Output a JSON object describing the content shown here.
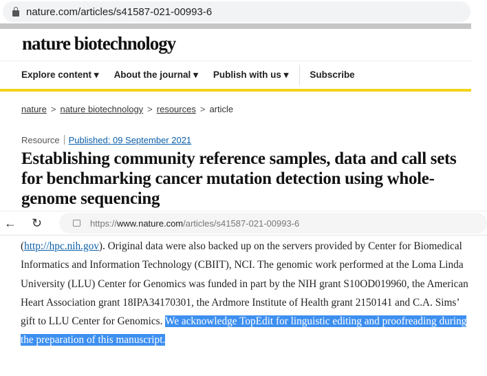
{
  "browser_top": {
    "url": "nature.com/articles/s41587-021-00993-6"
  },
  "site": {
    "logo": "nature biotechnology",
    "nav": [
      {
        "label": "Explore content",
        "chevron": "▾"
      },
      {
        "label": "About the journal",
        "chevron": "▾"
      },
      {
        "label": "Publish with us",
        "chevron": "▾"
      },
      {
        "label": "Subscribe"
      }
    ]
  },
  "breadcrumb": [
    {
      "label": "nature"
    },
    {
      "label": "nature biotechnology"
    },
    {
      "label": "resources"
    },
    {
      "label": "article"
    }
  ],
  "breadcrumb_sep": ">",
  "article": {
    "type": "Resource",
    "published": "Published: 09 September 2021",
    "title": "Establishing community reference samples, data and call sets for benchmarking cancer mutation detection using whole-genome sequencing"
  },
  "browser_bottom": {
    "url_prefix": "https://",
    "url_domain": "www.nature.com",
    "url_path": "/articles/s41587-021-00993-6"
  },
  "body": {
    "link": "http://hpc.nih.gov",
    "open": "(",
    "after_link": "). Original data were also backed up on the servers provided by Center for Biomedical Informatics and Information Technology (CBIIT), NCI. The genomic work performed at the Loma Linda University (LLU) Center for Genomics was funded in part by the NIH grant S10OD019960, the American Heart Association grant 18IPA34170301, the Ardmore Institute of Health grant 2150141 and C.A. Sims’ gift to LLU Center for Genomics. ",
    "highlighted": "We acknowledge TopEdit for linguistic editing and proofreading during the preparation of this manuscript."
  },
  "colors": {
    "highlight": "#3d8ff0",
    "accent_yellow": "#f2d31a",
    "link": "#0a5fa8"
  }
}
